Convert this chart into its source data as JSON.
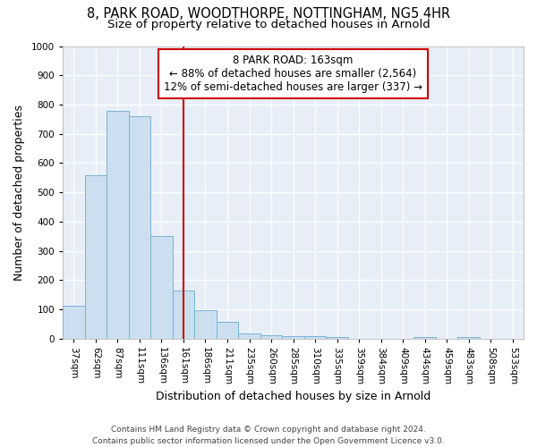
{
  "title1": "8, PARK ROAD, WOODTHORPE, NOTTINGHAM, NG5 4HR",
  "title2": "Size of property relative to detached houses in Arnold",
  "xlabel": "Distribution of detached houses by size in Arnold",
  "ylabel": "Number of detached properties",
  "bins": [
    "37sqm",
    "62sqm",
    "87sqm",
    "111sqm",
    "136sqm",
    "161sqm",
    "186sqm",
    "211sqm",
    "235sqm",
    "260sqm",
    "285sqm",
    "310sqm",
    "335sqm",
    "359sqm",
    "384sqm",
    "409sqm",
    "434sqm",
    "459sqm",
    "483sqm",
    "508sqm",
    "533sqm"
  ],
  "values": [
    113,
    560,
    780,
    760,
    350,
    165,
    98,
    57,
    18,
    13,
    10,
    8,
    5,
    0,
    0,
    0,
    7,
    0,
    5,
    0,
    0
  ],
  "bar_color": "#ccdff0",
  "bar_edge_color": "#7ab3d4",
  "vline_x_index": 5,
  "vline_color": "#cc0000",
  "annotation_line1": "8 PARK ROAD: 163sqm",
  "annotation_line2": "← 88% of detached houses are smaller (2,564)",
  "annotation_line3": "12% of semi-detached houses are larger (337) →",
  "annotation_box_color": "#ffffff",
  "annotation_box_edge_color": "#cc0000",
  "ylim": [
    0,
    1000
  ],
  "yticks": [
    0,
    100,
    200,
    300,
    400,
    500,
    600,
    700,
    800,
    900,
    1000
  ],
  "background_color": "#e8eef8",
  "footer_line1": "Contains HM Land Registry data © Crown copyright and database right 2024.",
  "footer_line2": "Contains public sector information licensed under the Open Government Licence v3.0.",
  "title1_fontsize": 10.5,
  "title2_fontsize": 9.5,
  "annotation_fontsize": 8.5,
  "axis_fontsize": 9,
  "tick_fontsize": 7.5
}
